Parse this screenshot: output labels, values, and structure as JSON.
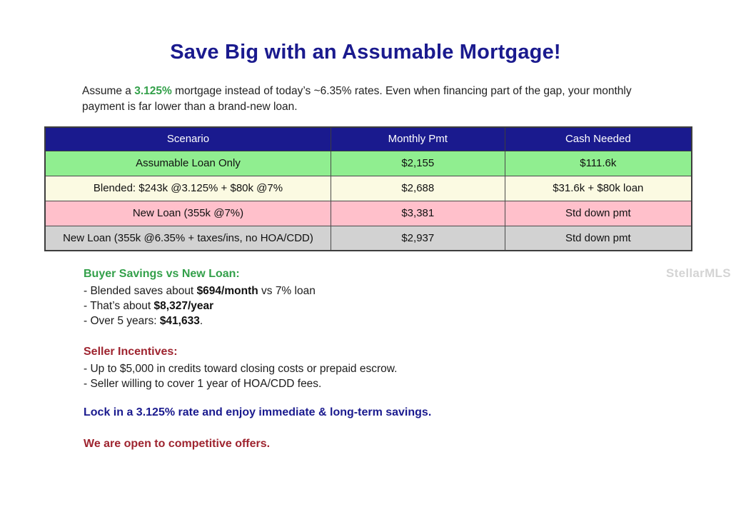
{
  "title": "Save Big with an Assumable Mortgage!",
  "intro": {
    "prefix": "Assume a ",
    "rate": "3.125%",
    "suffix": " mortgage instead of today’s ~6.35% rates. Even when financing part of the gap, your monthly payment is far lower than a brand-new loan."
  },
  "table": {
    "headers": [
      "Scenario",
      "Monthly Pmt",
      "Cash Needed"
    ],
    "rows": [
      {
        "scenario": "Assumable Loan Only",
        "monthly_pmt": "$2,155",
        "cash_needed": "$111.6k",
        "row_color": "#90EE90"
      },
      {
        "scenario": "Blended: $243k @3.125% + $80k @7%",
        "monthly_pmt": "$2,688",
        "cash_needed": "$31.6k + $80k loan",
        "row_color": "#FBFAE2"
      },
      {
        "scenario": "New Loan (355k @7%)",
        "monthly_pmt": "$3,381",
        "cash_needed": "Std down pmt",
        "row_color": "#FFC0CB"
      },
      {
        "scenario": "New Loan (355k @6.35% + taxes/ins, no HOA/CDD)",
        "monthly_pmt": "$2,937",
        "cash_needed": "Std down pmt",
        "row_color": "#D2D2D2"
      }
    ]
  },
  "buyer_savings": {
    "heading": "Buyer Savings vs New Loan:",
    "items": [
      {
        "pre": "- Blended saves about ",
        "bold": "$694/month",
        "post": " vs 7% loan"
      },
      {
        "pre": "- That’s about ",
        "bold": "$8,327/year",
        "post": ""
      },
      {
        "pre": "- Over 5 years: ",
        "bold": "$41,633",
        "post": "."
      }
    ]
  },
  "seller_incentives": {
    "heading": "Seller Incentives:",
    "items": [
      "- Up to $5,000 in credits toward closing costs or prepaid escrow.",
      "- Seller willing to cover 1 year of HOA/CDD fees."
    ]
  },
  "closing": {
    "lock_line": "Lock in a 3.125% rate and enjoy immediate & long-term savings.",
    "offers_line": "We are open to competitive offers."
  },
  "watermark": "StellarMLS",
  "colors": {
    "navy": "#1A1A8E",
    "green": "#33A04A",
    "dark_red": "#9E242F",
    "header_bg": "#1A1A8E",
    "row_green": "#90EE90",
    "row_cream": "#FBFAE2",
    "row_pink": "#FFC0CB",
    "row_gray": "#D2D2D2"
  }
}
